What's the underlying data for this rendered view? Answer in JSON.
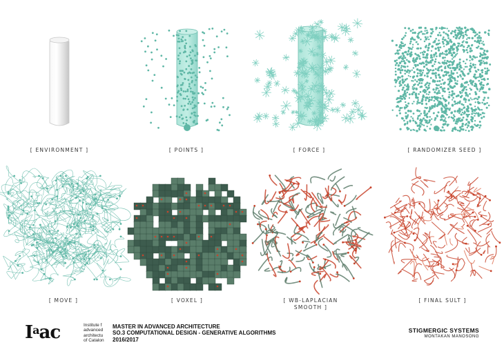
{
  "panels": [
    {
      "id": "environment",
      "caption": "[ ENVIRONMENT ]"
    },
    {
      "id": "points",
      "caption": "[ POINTS ]"
    },
    {
      "id": "force",
      "caption": "[ FORCE ]"
    },
    {
      "id": "randomizer-seed",
      "caption": "[ RANDOMIZER SEED ]"
    },
    {
      "id": "move",
      "caption": "[ MOVE ]"
    },
    {
      "id": "voxel",
      "caption": "[ VOXEL ]"
    },
    {
      "id": "wb-laplacian-smooth",
      "caption": "[ WB-LAPLACIAN\nSMOOTH ]"
    },
    {
      "id": "final-sult",
      "caption": "[ FINAL SULT ]"
    }
  ],
  "footer": {
    "logo": {
      "part1": "I",
      "part2": "a",
      "part3": "a",
      "part4": "c"
    },
    "institute_lines": [
      "Institute f",
      "advanced",
      "architectu",
      "of Catalon"
    ],
    "program_lines": [
      "MASTER IN ADVANCED ARCHITECTURE",
      "SO.3 COMPUTATIONAL DESIGN - GENERATIVE ALGORITHMS",
      "2016/2017"
    ],
    "project_title": "STIGMERGIC SYSTEMS",
    "author": "MONTAKAN MANOSONG"
  },
  "colors": {
    "teal": "#7fcfc0",
    "teal_dark": "#5fb7a6",
    "voxel": "#3d5c4e",
    "voxel_light": "#5a7d6a",
    "red": "#c8432b",
    "cylinder": "#e8e8e8"
  }
}
